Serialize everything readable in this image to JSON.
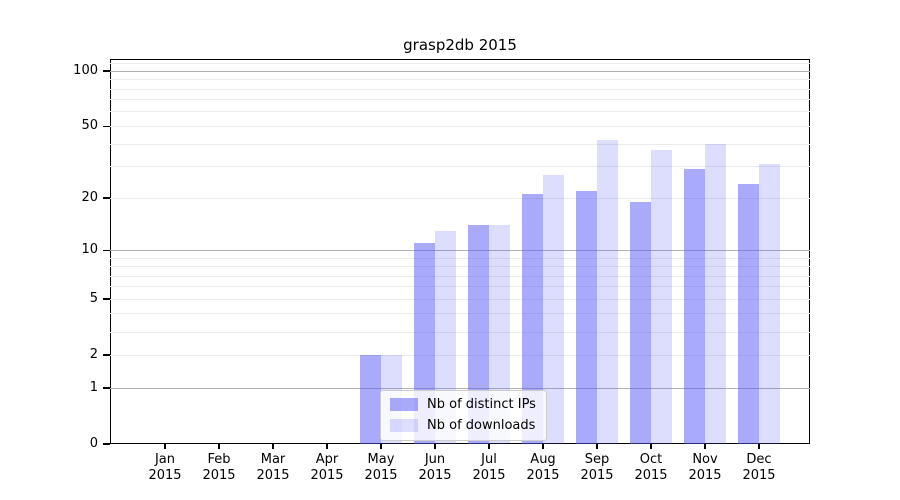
{
  "title": "grasp2db 2015",
  "chart_data": {
    "type": "bar",
    "title": "grasp2db 2015",
    "categories": [
      "Jan 2015",
      "Feb 2015",
      "Mar 2015",
      "Apr 2015",
      "May 2015",
      "Jun 2015",
      "Jul 2015",
      "Aug 2015",
      "Sep 2015",
      "Oct 2015",
      "Nov 2015",
      "Dec 2015"
    ],
    "x_tick_line1": [
      "Jan",
      "Feb",
      "Mar",
      "Apr",
      "May",
      "Jun",
      "Jul",
      "Aug",
      "Sep",
      "Oct",
      "Nov",
      "Dec"
    ],
    "x_tick_line2": "2015",
    "series": [
      {
        "name": "Nb of distinct IPs",
        "color": "rgba(85,85,245,0.5)",
        "values": [
          0,
          0,
          0,
          0,
          2,
          11,
          14,
          21,
          22,
          19,
          29,
          24
        ]
      },
      {
        "name": "Nb of downloads",
        "color": "rgba(85,85,245,0.2)",
        "values": [
          0,
          0,
          0,
          0,
          2,
          13,
          14,
          27,
          42,
          37,
          40,
          31
        ]
      }
    ],
    "yscale": "log(1+x)",
    "ylim": [
      0,
      117
    ],
    "ytick_labels": [
      "0",
      "1",
      "2",
      "5",
      "10",
      "20",
      "50",
      "100"
    ],
    "ytick_values": [
      0,
      1,
      2,
      5,
      10,
      20,
      50,
      100
    ],
    "major_gridlines": [
      1,
      10,
      100
    ],
    "minor_gridlines": [
      2,
      3,
      4,
      5,
      6,
      7,
      8,
      9,
      20,
      30,
      40,
      50,
      60,
      70,
      80,
      90,
      110
    ],
    "grid": true,
    "legend_position": "lower center"
  },
  "colors": {
    "bar_distinct_ips": "rgba(85,85,245,0.5)",
    "bar_downloads": "rgba(85,85,245,0.2)",
    "major_grid": "#b2b2b2",
    "minor_grid": "#ebebeb",
    "spine": "#000000"
  }
}
